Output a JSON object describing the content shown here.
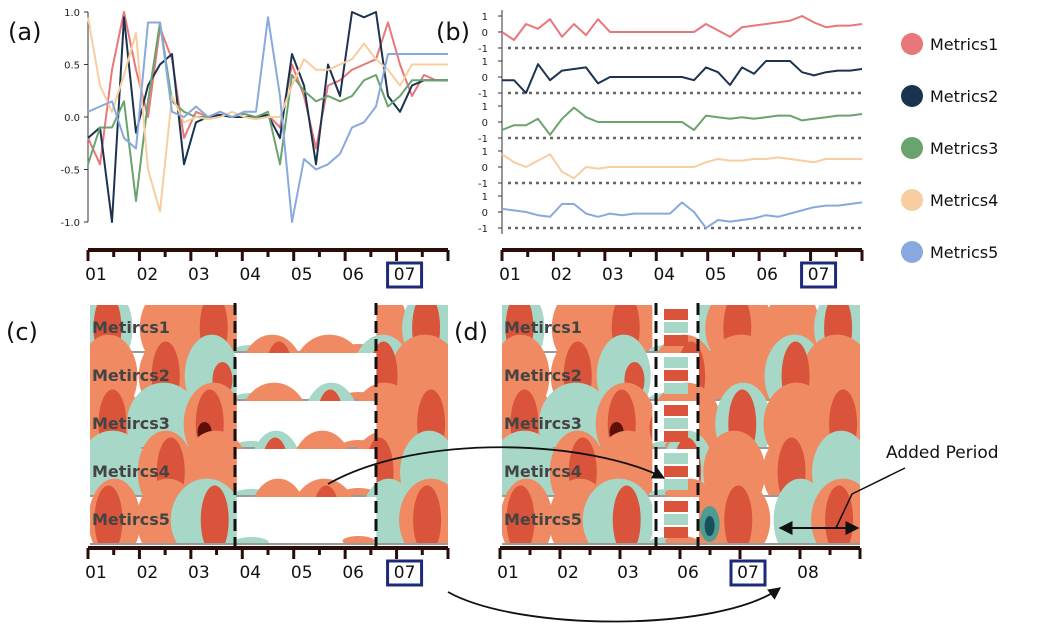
{
  "panels": {
    "a": {
      "label": "(a)"
    },
    "b": {
      "label": "(b)"
    },
    "c": {
      "label": "(c)"
    },
    "d": {
      "label": "(d)"
    }
  },
  "annotation": {
    "added_period": "Added Period"
  },
  "colors": {
    "metrics1": "#e8777a",
    "metrics2": "#1c3350",
    "metrics3": "#6aa36e",
    "metrics4": "#f8cd9f",
    "metrics5": "#88a9de",
    "highlight_box": "#1d2a7a",
    "axis": "#2a0d08",
    "heat_dark": "#5e0f0a",
    "heat_mid": "#d9543a",
    "heat_light": "#ef8a63",
    "teal_light": "#a7d7c7",
    "teal_mid": "#4e9b92",
    "teal_dark": "#17505a"
  },
  "chart_data": [
    {
      "id": "a",
      "type": "line",
      "title": "",
      "xlabel": "",
      "ylabel": "",
      "ylim": [
        -1.0,
        1.0
      ],
      "yticks": [
        "1.0",
        "0.5",
        "0.0",
        "-0.5",
        "-1.0"
      ],
      "xticks": [
        "01",
        "02",
        "03",
        "04",
        "05",
        "06",
        "07"
      ],
      "highlight_tick": "07",
      "x": [
        0,
        1,
        2,
        3,
        4,
        5,
        6,
        7,
        8,
        9,
        10,
        11,
        12,
        13,
        14,
        15,
        16,
        17,
        18,
        19,
        20,
        21,
        22,
        23,
        24,
        25,
        26,
        27,
        28,
        29,
        30
      ],
      "series": [
        {
          "name": "Metrics1",
          "values": [
            -0.2,
            -0.45,
            0.45,
            1.0,
            0.45,
            0.0,
            0.85,
            0.55,
            -0.2,
            0.05,
            0.0,
            0.02,
            0.0,
            0.03,
            0.0,
            0.02,
            -0.1,
            0.5,
            0.2,
            -0.3,
            0.3,
            0.35,
            0.45,
            0.5,
            0.55,
            0.9,
            0.5,
            0.2,
            0.4,
            0.35,
            0.35
          ]
        },
        {
          "name": "Metrics2",
          "values": [
            -0.2,
            -0.1,
            -1.0,
            0.95,
            -0.15,
            0.3,
            0.5,
            0.6,
            -0.45,
            -0.05,
            0.0,
            0.02,
            0.0,
            0.0,
            0.0,
            0.02,
            -0.2,
            0.6,
            0.3,
            -0.45,
            0.5,
            0.2,
            1.0,
            0.95,
            1.0,
            0.2,
            0.05,
            0.3,
            0.35,
            0.35,
            0.35
          ]
        },
        {
          "name": "Metrics3",
          "values": [
            -0.45,
            -0.1,
            -0.1,
            0.15,
            -0.8,
            0.15,
            0.9,
            0.15,
            0.05,
            0.0,
            0.0,
            0.05,
            0.0,
            0.03,
            0.0,
            0.05,
            -0.45,
            0.4,
            0.25,
            0.15,
            0.2,
            0.15,
            0.2,
            0.35,
            0.4,
            0.1,
            0.2,
            0.35,
            0.35,
            0.35,
            0.35
          ]
        },
        {
          "name": "Metrics4",
          "values": [
            0.95,
            0.3,
            0.05,
            0.4,
            0.8,
            -0.5,
            -0.9,
            0.2,
            -0.05,
            0.0,
            -0.02,
            0.0,
            0.05,
            0.0,
            -0.02,
            0.0,
            0.0,
            0.3,
            0.55,
            0.45,
            0.45,
            0.5,
            0.55,
            0.7,
            0.55,
            0.45,
            0.3,
            0.5,
            0.5,
            0.5,
            0.5
          ]
        },
        {
          "name": "Metrics5",
          "values": [
            0.05,
            0.1,
            0.15,
            -0.2,
            -0.3,
            0.9,
            0.9,
            0.05,
            0.0,
            0.1,
            0.0,
            0.05,
            0.0,
            0.05,
            0.05,
            0.95,
            0.2,
            -1.0,
            -0.4,
            -0.5,
            -0.45,
            -0.35,
            -0.1,
            -0.05,
            0.1,
            0.6,
            0.6,
            0.6,
            0.6,
            0.6,
            0.6
          ]
        }
      ]
    },
    {
      "id": "b",
      "type": "line",
      "title": "",
      "xlabel": "",
      "ylabel": "",
      "row_ylim": [
        -1,
        1
      ],
      "row_yticks": [
        "1",
        "0",
        "-1"
      ],
      "xticks": [
        "01",
        "02",
        "03",
        "04",
        "05",
        "06",
        "07"
      ],
      "highlight_tick": "07",
      "x": [
        0,
        1,
        2,
        3,
        4,
        5,
        6,
        7,
        8,
        9,
        10,
        11,
        12,
        13,
        14,
        15,
        16,
        17,
        18,
        19,
        20,
        21,
        22,
        23,
        24,
        25,
        26,
        27,
        28,
        29,
        30
      ],
      "series": [
        {
          "name": "Metrics1",
          "values": [
            0.0,
            -0.5,
            0.5,
            0.2,
            0.8,
            -0.3,
            0.5,
            -0.2,
            0.8,
            0.0,
            0.0,
            0.0,
            0.0,
            0.0,
            0.0,
            0.0,
            0.0,
            0.5,
            0.1,
            -0.3,
            0.3,
            0.4,
            0.5,
            0.6,
            0.7,
            1.0,
            0.6,
            0.3,
            0.4,
            0.4,
            0.5
          ]
        },
        {
          "name": "Metrics2",
          "values": [
            -0.2,
            -0.2,
            -1.0,
            0.8,
            -0.2,
            0.4,
            0.5,
            0.6,
            -0.4,
            0.0,
            0.0,
            0.0,
            0.0,
            0.0,
            0.0,
            0.0,
            -0.2,
            0.6,
            0.3,
            -0.5,
            0.6,
            0.2,
            1.0,
            1.0,
            1.0,
            0.3,
            0.1,
            0.3,
            0.4,
            0.4,
            0.5
          ]
        },
        {
          "name": "Metrics3",
          "values": [
            -0.5,
            -0.2,
            -0.2,
            0.2,
            -0.8,
            0.2,
            0.9,
            0.3,
            0.0,
            0.0,
            0.0,
            0.0,
            0.0,
            0.0,
            0.0,
            0.0,
            -0.5,
            0.4,
            0.3,
            0.2,
            0.3,
            0.2,
            0.3,
            0.4,
            0.4,
            0.1,
            0.2,
            0.3,
            0.4,
            0.4,
            0.5
          ]
        },
        {
          "name": "Metrics4",
          "values": [
            0.8,
            0.3,
            0.0,
            0.4,
            0.8,
            -0.3,
            -0.7,
            0.0,
            -0.1,
            0.0,
            0.0,
            0.0,
            0.0,
            0.0,
            0.0,
            0.0,
            0.0,
            0.3,
            0.5,
            0.4,
            0.4,
            0.5,
            0.5,
            0.6,
            0.5,
            0.4,
            0.3,
            0.5,
            0.5,
            0.5,
            0.5
          ]
        },
        {
          "name": "Metrics5",
          "values": [
            0.2,
            0.1,
            0.0,
            -0.2,
            -0.3,
            0.5,
            0.5,
            -0.1,
            -0.3,
            -0.1,
            -0.2,
            -0.1,
            -0.1,
            -0.1,
            -0.1,
            0.6,
            0.0,
            -1.0,
            -0.5,
            -0.6,
            -0.5,
            -0.4,
            -0.2,
            -0.3,
            -0.1,
            0.1,
            0.3,
            0.4,
            0.4,
            0.5,
            0.6
          ]
        }
      ]
    },
    {
      "id": "c",
      "type": "heatmap",
      "rows": [
        "Metircs1",
        "Metircs2",
        "Metircs3",
        "Metircs4",
        "Metircs5"
      ],
      "xticks": [
        "01",
        "02",
        "03",
        "04",
        "05",
        "06",
        "07"
      ],
      "highlight_tick": "07"
    },
    {
      "id": "d",
      "type": "heatmap",
      "rows": [
        "Metircs1",
        "Metircs2",
        "Metircs3",
        "Metircs4",
        "Metircs5"
      ],
      "xticks": [
        "01",
        "02",
        "03",
        "06",
        "07",
        "08"
      ],
      "highlight_tick": "07"
    }
  ],
  "legend": [
    {
      "label": "Metrics1",
      "color": "#e8777a"
    },
    {
      "label": "Metrics2",
      "color": "#1c3350"
    },
    {
      "label": "Metrics3",
      "color": "#6aa36e"
    },
    {
      "label": "Metrics4",
      "color": "#f8cd9f"
    },
    {
      "label": "Metrics5",
      "color": "#88a9de"
    }
  ]
}
